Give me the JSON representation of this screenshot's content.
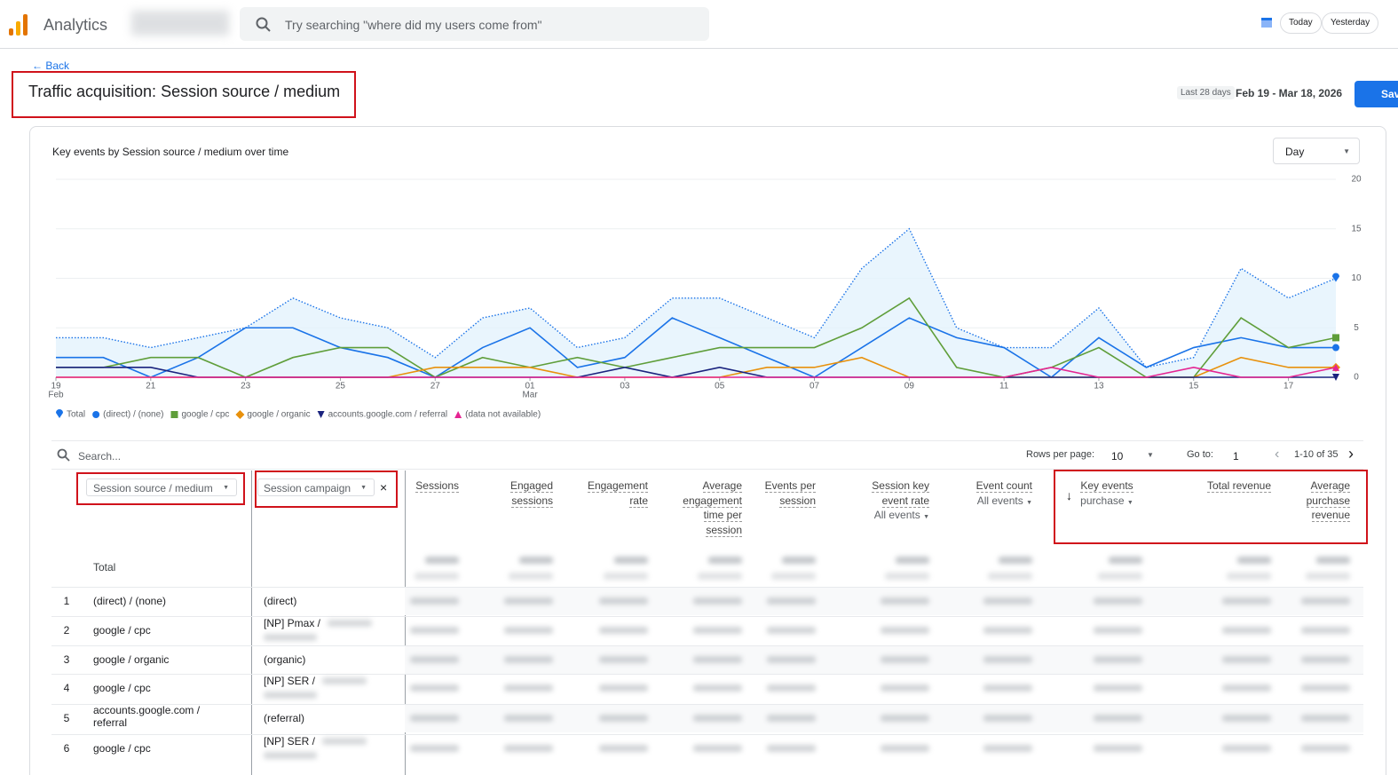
{
  "app": {
    "name": "Analytics",
    "search_placeholder": "Try searching \"where did my users come from\"",
    "date_buttons": [
      "Today",
      "Yesterday"
    ]
  },
  "header": {
    "back": "Back",
    "title": "Traffic acquisition: Session source / medium",
    "date_range_label": "Last 28 days",
    "date_range": "Feb 19 - Mar 18, 2026",
    "save_button": "Save"
  },
  "chart_data": {
    "type": "line",
    "title": "Key events by Session source / medium over time",
    "granularity": "Day",
    "categories": [
      "19",
      null,
      "21",
      null,
      "23",
      null,
      "25",
      null,
      "27",
      null,
      "01",
      null,
      "03",
      null,
      "05",
      null,
      "07",
      null,
      "09",
      null,
      "11",
      null,
      "13",
      null,
      "15",
      null,
      "17",
      null
    ],
    "category_sublabels": [
      "Feb",
      null,
      null,
      null,
      null,
      null,
      null,
      null,
      null,
      null,
      "Mar",
      null,
      null,
      null,
      null,
      null,
      null,
      null,
      null,
      null,
      null,
      null,
      null,
      null,
      null,
      null,
      null,
      null
    ],
    "ylim": [
      0,
      20
    ],
    "yticks": [
      0,
      5,
      10,
      15,
      20
    ],
    "grid": true,
    "y_axis_side": "right",
    "series": [
      {
        "name": "Total",
        "color": "#1a73e8",
        "style": "dotted",
        "area": true,
        "marker": "pin",
        "values": [
          4,
          4,
          3,
          4,
          5,
          8,
          6,
          5,
          2,
          6,
          7,
          3,
          4,
          8,
          8,
          6,
          4,
          11,
          15,
          5,
          3,
          3,
          7,
          1,
          2,
          11,
          8,
          10
        ]
      },
      {
        "name": "(direct) / (none)",
        "color": "#1a73e8",
        "marker": "circle",
        "values": [
          2,
          2,
          0,
          2,
          5,
          5,
          3,
          2,
          0,
          3,
          5,
          1,
          2,
          6,
          4,
          2,
          0,
          3,
          6,
          4,
          3,
          0,
          4,
          1,
          3,
          4,
          3,
          3
        ]
      },
      {
        "name": "google / cpc",
        "color": "#5f9e3a",
        "marker": "square",
        "values": [
          1,
          1,
          2,
          2,
          0,
          2,
          3,
          3,
          0,
          2,
          1,
          2,
          1,
          2,
          3,
          3,
          3,
          5,
          8,
          1,
          0,
          1,
          3,
          0,
          0,
          6,
          3,
          4
        ]
      },
      {
        "name": "google / organic",
        "color": "#e8910c",
        "marker": "diamond",
        "values": [
          0,
          0,
          0,
          0,
          0,
          0,
          0,
          0,
          1,
          1,
          1,
          0,
          0,
          0,
          0,
          1,
          1,
          2,
          0,
          0,
          0,
          0,
          0,
          0,
          0,
          2,
          1,
          1
        ]
      },
      {
        "name": "accounts.google.com / referral",
        "color": "#1a237e",
        "marker": "triangle-down",
        "values": [
          1,
          1,
          1,
          0,
          0,
          0,
          0,
          0,
          0,
          0,
          0,
          0,
          1,
          0,
          1,
          0,
          0,
          0,
          0,
          0,
          0,
          0,
          0,
          0,
          0,
          0,
          0,
          0
        ]
      },
      {
        "name": "(data not available)",
        "color": "#e52592",
        "marker": "triangle-up",
        "values": [
          0,
          0,
          0,
          0,
          0,
          0,
          0,
          0,
          0,
          0,
          0,
          0,
          0,
          0,
          0,
          0,
          0,
          0,
          0,
          0,
          0,
          1,
          0,
          0,
          1,
          0,
          0,
          1
        ]
      }
    ]
  },
  "table": {
    "search_placeholder": "Search...",
    "rows_per_page_label": "Rows per page:",
    "rows_per_page": 10,
    "goto_label": "Go to:",
    "goto": 1,
    "pagination": "1-10 of 35",
    "dimensions": [
      "Session source / medium",
      "Session campaign"
    ],
    "metrics": [
      {
        "label": "Sessions"
      },
      {
        "label": "Engaged sessions"
      },
      {
        "label": "Engagement rate"
      },
      {
        "label": "Average engagement time per session"
      },
      {
        "label": "Events per session"
      },
      {
        "label": "Session key event rate",
        "sub": "All events"
      },
      {
        "label": "Event count",
        "sub": "All events"
      },
      {
        "label": "Key events",
        "sub": "purchase"
      },
      {
        "label": "Total revenue"
      },
      {
        "label": "Average purchase revenue"
      }
    ],
    "total_label": "Total",
    "rows": [
      [
        1,
        "(direct) / (none)",
        "(direct)"
      ],
      [
        2,
        "google / cpc",
        "[NP] Pmax /"
      ],
      [
        3,
        "google / organic",
        "(organic)"
      ],
      [
        4,
        "google / cpc",
        "[NP] SER /"
      ],
      [
        5,
        "accounts.google.com / referral",
        "(referral)"
      ],
      [
        6,
        "google / cpc",
        "[NP] SER /"
      ]
    ]
  }
}
